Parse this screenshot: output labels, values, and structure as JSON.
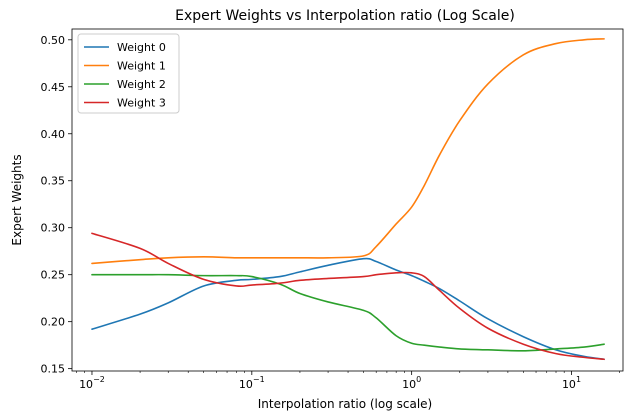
{
  "chart_data": {
    "type": "line",
    "title": "Expert Weights vs Interpolation ratio (Log Scale)",
    "xlabel": "Interpolation ratio (log scale)",
    "ylabel": "Expert Weights",
    "xscale": "log",
    "xlim": [
      0.0075,
      21
    ],
    "ylim": [
      0.1475,
      0.5115
    ],
    "yticks": [
      0.15,
      0.2,
      0.25,
      0.3,
      0.35,
      0.4,
      0.45,
      0.5
    ],
    "ytick_labels": [
      "0.15",
      "0.20",
      "0.25",
      "0.30",
      "0.35",
      "0.40",
      "0.45",
      "0.50"
    ],
    "xticks": [
      0.01,
      0.1,
      1,
      10
    ],
    "xtick_labels": [
      {
        "base": "10",
        "exp": "−2"
      },
      {
        "base": "10",
        "exp": "−1"
      },
      {
        "base": "10",
        "exp": "0"
      },
      {
        "base": "10",
        "exp": "1"
      }
    ],
    "grid": false,
    "legend_position": "top-left",
    "x": [
      0.01,
      0.02,
      0.03,
      0.05,
      0.08,
      0.1,
      0.15,
      0.2,
      0.3,
      0.5,
      0.6,
      0.8,
      1.0,
      1.2,
      1.5,
      2.0,
      3.0,
      5.0,
      8.0,
      12.0,
      16.0
    ],
    "series": [
      {
        "name": "Weight 0",
        "color": "#1f77b4",
        "values": [
          0.192,
          0.208,
          0.22,
          0.238,
          0.244,
          0.245,
          0.248,
          0.253,
          0.26,
          0.267,
          0.264,
          0.255,
          0.249,
          0.243,
          0.235,
          0.222,
          0.203,
          0.184,
          0.17,
          0.163,
          0.16
        ]
      },
      {
        "name": "Weight 1",
        "color": "#ff7f0e",
        "values": [
          0.262,
          0.266,
          0.268,
          0.269,
          0.268,
          0.268,
          0.268,
          0.268,
          0.268,
          0.27,
          0.28,
          0.304,
          0.322,
          0.345,
          0.378,
          0.414,
          0.453,
          0.484,
          0.496,
          0.5,
          0.501
        ]
      },
      {
        "name": "Weight 2",
        "color": "#2ca02c",
        "values": [
          0.25,
          0.25,
          0.25,
          0.249,
          0.249,
          0.248,
          0.24,
          0.23,
          0.221,
          0.212,
          0.204,
          0.185,
          0.177,
          0.175,
          0.173,
          0.171,
          0.17,
          0.169,
          0.171,
          0.173,
          0.176
        ]
      },
      {
        "name": "Weight 3",
        "color": "#d62728",
        "values": [
          0.294,
          0.278,
          0.262,
          0.245,
          0.238,
          0.239,
          0.241,
          0.244,
          0.246,
          0.248,
          0.25,
          0.252,
          0.252,
          0.248,
          0.233,
          0.214,
          0.193,
          0.176,
          0.166,
          0.162,
          0.16
        ]
      }
    ]
  }
}
